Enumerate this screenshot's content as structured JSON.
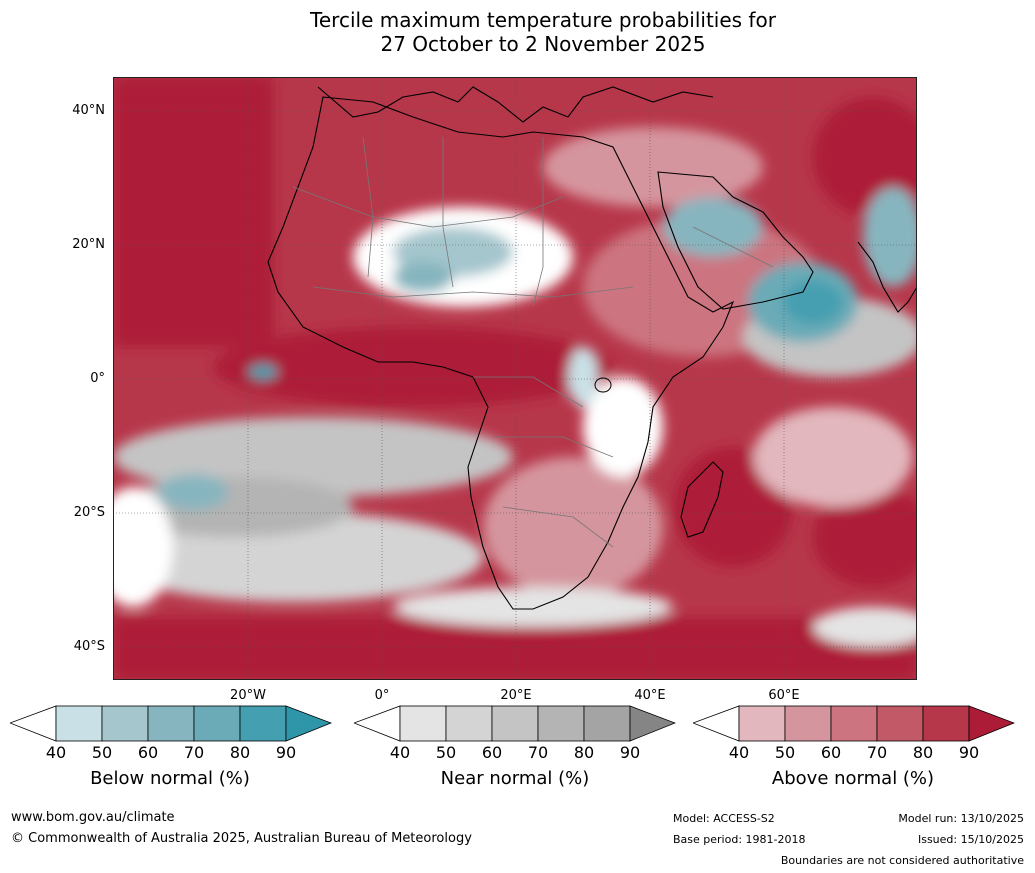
{
  "title": {
    "line1": "Tercile maximum temperature probabilities for",
    "line2": "27 October to 2 November 2025"
  },
  "axes": {
    "lat_labels": [
      "40°N",
      "20°N",
      "0°",
      "20°S",
      "40°S"
    ],
    "lon_labels": [
      "20°W",
      "0°",
      "20°E",
      "40°E",
      "60°E"
    ]
  },
  "colorbars": [
    {
      "name": "Below normal (%)",
      "ticks": [
        "40",
        "50",
        "60",
        "70",
        "80",
        "90"
      ],
      "colors": [
        "#ffffff",
        "#c9e1e6",
        "#a5c6cd",
        "#87b5bf",
        "#6aabb7",
        "#449fb0",
        "#2f95a9"
      ]
    },
    {
      "name": "Near normal (%)",
      "ticks": [
        "40",
        "50",
        "60",
        "70",
        "80",
        "90"
      ],
      "colors": [
        "#ffffff",
        "#e4e4e4",
        "#d4d4d4",
        "#c4c4c4",
        "#b4b4b4",
        "#a4a4a4",
        "#858585"
      ]
    },
    {
      "name": "Above normal (%)",
      "ticks": [
        "40",
        "50",
        "60",
        "70",
        "80",
        "90"
      ],
      "colors": [
        "#ffffff",
        "#e2b7bd",
        "#d5959e",
        "#cc7480",
        "#c25966",
        "#b7374a",
        "#ad1c37"
      ]
    }
  ],
  "footer": {
    "website": "www.bom.gov.au/climate",
    "copyright": "© Commonwealth of Australia 2025, Australian Bureau of Meteorology",
    "model": "Model: ACCESS-S2",
    "base_period": "Base period: 1981-2018",
    "model_run": "Model run: 13/10/2025",
    "issued": "Issued: 15/10/2025",
    "disclaimer": "Boundaries are not considered authoritative"
  }
}
